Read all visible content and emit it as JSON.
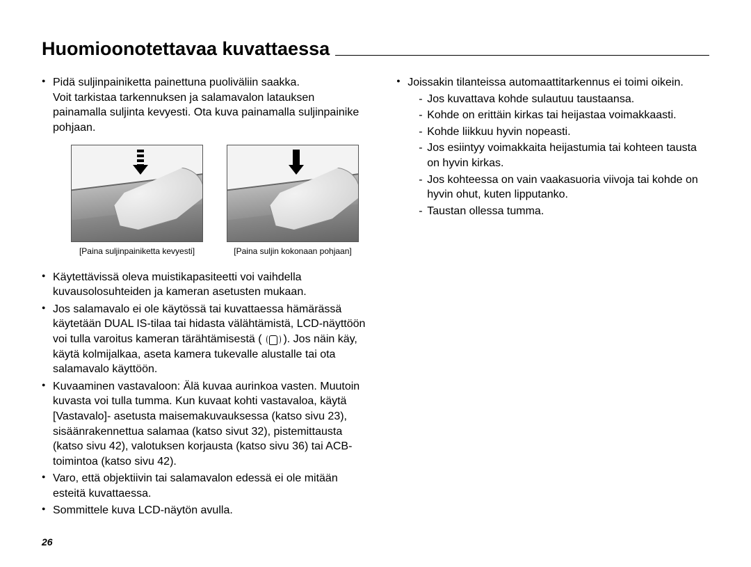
{
  "page": {
    "title": "Huomioonotettavaa kuvattaessa",
    "number": "26"
  },
  "left": {
    "bullet1_l1": "Pidä suljinpainiketta painettuna puoliväliin saakka.",
    "bullet1_l2": "Voit tarkistaa tarkennuksen ja salamavalon latauksen painamalla suljinta kevyesti. Ota kuva painamalla suljinpainike pohjaan.",
    "fig1_caption": "[Paina suljinpainiketta kevyesti]",
    "fig2_caption": "[Paina suljin kokonaan pohjaan]",
    "bullet2": "Käytettävissä oleva muistikapasiteetti voi vaihdella kuvausolosuhteiden ja kameran asetusten mukaan.",
    "bullet3_a": "Jos salamavalo ei ole käytössä tai kuvattaessa hämärässä käytetään DUAL IS-tilaa tai hidasta välähtämistä, LCD-näyttöön voi tulla varoitus kameran tärähtämisestä ( ",
    "bullet3_b": " ). Jos näin käy, käytä kolmijalkaa, aseta kamera tukevalle alustalle tai ota salamavalo käyttöön.",
    "bullet4_label": "Kuvaaminen vastavaloon:",
    "bullet4_text": "Älä kuvaa aurinkoa vasten. Muutoin kuvasta voi tulla tumma. Kun kuvaat kohti vastavaloa, käytä [Vastavalo]- asetusta maisemakuvauksessa (katso sivu 23), sisäänrakennettua salamaa (katso sivut 32), pistemittausta (katso sivu 42), valotuksen korjausta (katso sivu 36) tai ACB-toimintoa (katso sivu 42).",
    "bullet5": "Varo, että objektiivin tai salamavalon edessä ei ole mitään esteitä kuvattaessa.",
    "bullet6": "Sommittele kuva LCD-näytön avulla."
  },
  "right": {
    "bullet1": "Joissakin tilanteissa automaattitarkennus ei toimi oikein.",
    "dash1": "Jos kuvattava kohde sulautuu taustaansa.",
    "dash2": "Kohde on erittäin kirkas tai heijastaa voimakkaasti.",
    "dash3": "Kohde liikkuu hyvin nopeasti.",
    "dash4": "Jos esiintyy voimakkaita heijastumia tai kohteen tausta on hyvin kirkas.",
    "dash5": "Jos kohteessa on vain vaakasuoria viivoja tai kohde on hyvin ohut, kuten lipputanko.",
    "dash6": "Taustan ollessa tumma."
  }
}
